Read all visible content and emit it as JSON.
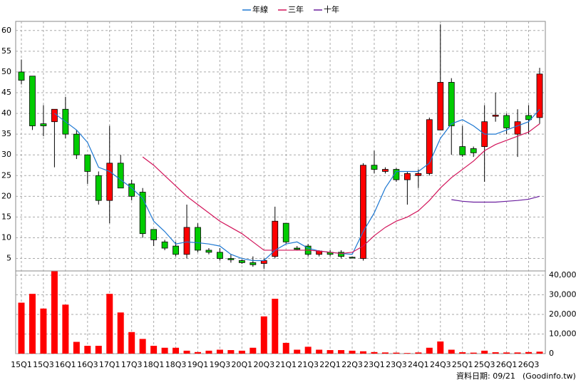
{
  "chart_data": {
    "type": "candlestick",
    "categories": [
      "15Q1",
      null,
      "15Q3",
      null,
      "16Q1",
      null,
      "16Q3",
      null,
      "17Q1",
      null,
      "17Q3",
      null,
      "18Q1",
      null,
      "18Q3",
      null,
      "19Q1",
      null,
      "19Q3",
      null,
      "20Q1",
      null,
      "20Q3",
      null,
      "21Q1",
      null,
      "21Q3",
      null,
      "22Q1",
      null,
      "22Q3",
      null,
      "23Q1",
      null,
      "23Q3",
      null,
      "24Q1",
      null,
      "24Q3",
      null,
      "25Q1",
      null,
      "25Q3",
      null,
      "26Q1",
      null,
      "26Q3",
      null
    ],
    "open": [
      50,
      49,
      37.5,
      38,
      41,
      35,
      30,
      25,
      19,
      28,
      23,
      21,
      12,
      9,
      8,
      6,
      12.5,
      7,
      6.5,
      5,
      4.5,
      4,
      3.8,
      5.5,
      13.5,
      7.5,
      8,
      6,
      6.5,
      6.5,
      5.3,
      5,
      27.5,
      26,
      26.5,
      24,
      25,
      25.5,
      36,
      47.5,
      32,
      31.5,
      32,
      39.3,
      39.5,
      35,
      39.5,
      39
    ],
    "high": [
      53,
      49,
      42,
      41,
      44,
      36,
      30,
      26,
      37,
      30,
      24,
      22,
      12,
      9.5,
      9,
      18,
      13.5,
      7.5,
      7.5,
      6,
      4.8,
      5.5,
      5,
      17.5,
      13.5,
      8,
      8.5,
      7,
      7,
      7,
      5.5,
      28,
      31,
      27,
      26.8,
      26,
      26.5,
      39,
      61.5,
      48.5,
      37,
      32,
      42,
      45,
      40,
      41,
      42,
      51
    ],
    "low": [
      47,
      36,
      34.5,
      27,
      34,
      29,
      23,
      18,
      13.5,
      22,
      19,
      10,
      8,
      7,
      5.5,
      5,
      6.5,
      6,
      4.5,
      4,
      3.7,
      3,
      2.5,
      5,
      8.5,
      7,
      5.5,
      5.5,
      5.5,
      5,
      5,
      4.5,
      25.5,
      25.5,
      23.5,
      18,
      22,
      25,
      36,
      30,
      29.5,
      29.5,
      23.5,
      38,
      35,
      29.5,
      35,
      37.5
    ],
    "close": [
      48,
      37,
      37,
      41,
      35,
      30,
      26,
      19,
      28,
      22,
      20,
      11,
      9.5,
      7.5,
      6,
      12.5,
      7,
      6.5,
      5,
      4.7,
      4,
      3.5,
      4.5,
      14,
      9,
      7.2,
      6,
      6.8,
      6,
      5.5,
      5.1,
      27.5,
      26.5,
      26.5,
      24,
      25.5,
      25.5,
      38.5,
      47.5,
      37,
      30,
      30.5,
      38,
      39.6,
      36.5,
      38,
      38.5,
      49.5
    ],
    "up_color": "#ff0000",
    "down_color": "#00cc00",
    "series": [
      {
        "name": "年線",
        "color": "#1e78d2",
        "values": [
          null,
          null,
          null,
          40,
          38,
          36,
          33,
          27,
          26,
          24,
          22,
          19.5,
          14,
          11.5,
          8.5,
          9,
          8.8,
          8.5,
          8,
          6,
          5,
          4.5,
          4.5,
          7,
          8.5,
          9,
          7.5,
          6.8,
          6.5,
          6.2,
          6,
          11.5,
          16,
          22,
          26,
          26,
          26,
          28,
          34,
          37.5,
          38.5,
          37,
          35,
          35,
          36,
          37,
          38,
          41
        ]
      },
      {
        "name": "三年",
        "color": "#d2145a",
        "values": [
          null,
          null,
          null,
          null,
          null,
          null,
          null,
          null,
          null,
          null,
          null,
          29.5,
          27.5,
          25,
          22.5,
          20,
          18,
          16,
          14,
          12.5,
          11,
          9,
          7,
          7,
          7,
          7,
          7,
          6.8,
          6.5,
          6.2,
          6.5,
          8,
          10.5,
          12.5,
          14,
          15,
          16.5,
          19,
          22,
          24.5,
          26.5,
          28.5,
          31,
          32.5,
          33.5,
          34.5,
          35.5,
          37.5
        ]
      },
      {
        "name": "十年",
        "color": "#6a1e9e",
        "values": [
          null,
          null,
          null,
          null,
          null,
          null,
          null,
          null,
          null,
          null,
          null,
          null,
          null,
          null,
          null,
          null,
          null,
          null,
          null,
          null,
          null,
          null,
          null,
          null,
          null,
          null,
          null,
          null,
          null,
          null,
          null,
          null,
          null,
          null,
          null,
          null,
          null,
          null,
          null,
          19.2,
          18.8,
          18.6,
          18.6,
          18.6,
          18.8,
          19,
          19.3,
          20
        ]
      }
    ],
    "volume": {
      "color": "#ff0000",
      "values": [
        26000,
        30500,
        23000,
        42000,
        25000,
        6000,
        4000,
        4000,
        30500,
        21000,
        11000,
        7500,
        4000,
        3000,
        3000,
        1500,
        800,
        1500,
        2000,
        1800,
        1500,
        3000,
        19000,
        28000,
        5500,
        2000,
        3500,
        2000,
        1800,
        1800,
        1500,
        1200,
        800,
        600,
        500,
        300,
        600,
        3000,
        6200,
        2000,
        700,
        500,
        1500,
        700,
        600,
        600,
        800,
        1000
      ]
    },
    "ylim": [
      2,
      62.2
    ],
    "yticks": [
      5,
      10,
      15,
      20,
      25,
      30,
      35,
      40,
      45,
      50,
      55,
      60
    ],
    "y2lim": [
      0,
      42200
    ],
    "y2ticks": [
      0,
      {
        "value": 10000,
        "label": "10,000"
      },
      {
        "value": 20000,
        "label": "20,000"
      },
      {
        "value": 30000,
        "label": "30,000"
      },
      {
        "value": 40000,
        "label": "40,000"
      }
    ],
    "grid": true,
    "footnote": "資料日期: 09/21",
    "source": "(Goodinfo.tw)"
  }
}
